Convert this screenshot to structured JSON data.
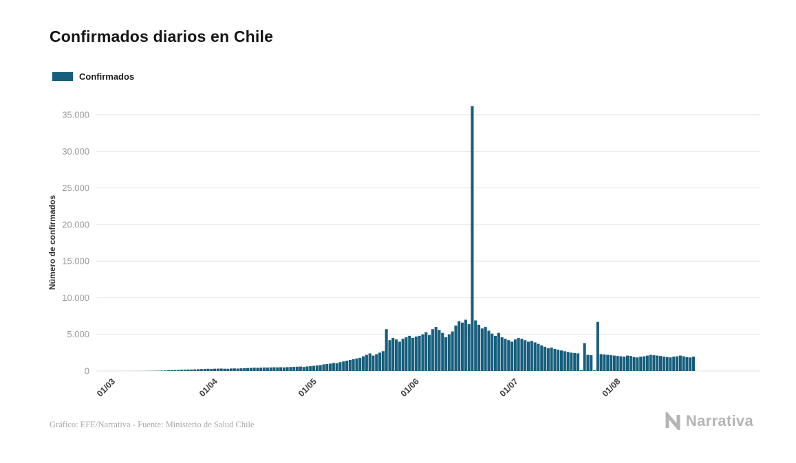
{
  "page": {
    "title": "Confirmados diarios en Chile",
    "legend": {
      "label": "Confirmados"
    },
    "footer": {
      "credit": "Gráfico: EFE/Narrativa - Fuente: Ministerio de Salud Chile",
      "brand": "Narrativa"
    }
  },
  "chart_data": {
    "type": "bar",
    "title": "Confirmados diarios en Chile",
    "xlabel": "",
    "ylabel": "Número de confirmados",
    "legend_entries": [
      "Confirmados"
    ],
    "legend_position": "top-left",
    "grid": true,
    "bar_color": "#175e7c",
    "gridline_color": "#e3e3e3",
    "ylim": [
      0,
      35000
    ],
    "yticks": [
      0,
      5000,
      10000,
      15000,
      20000,
      25000,
      30000,
      35000
    ],
    "ytick_labels": [
      "0",
      "5.000",
      "10.000",
      "15.000",
      "20.000",
      "25.000",
      "30.000",
      "35.000"
    ],
    "x_granularity": "daily",
    "xticks_day_index": [
      0,
      31,
      61,
      92,
      122,
      153
    ],
    "xtick_labels": [
      "01/03",
      "01/04",
      "01/05",
      "01/06",
      "01/07",
      "01/08"
    ],
    "peak_value": 36179,
    "values": [
      1,
      2,
      3,
      4,
      5,
      6,
      8,
      10,
      12,
      15,
      20,
      25,
      30,
      40,
      55,
      70,
      85,
      100,
      120,
      140,
      160,
      175,
      190,
      200,
      220,
      240,
      260,
      280,
      300,
      290,
      310,
      320,
      330,
      310,
      300,
      340,
      350,
      330,
      360,
      380,
      400,
      420,
      440,
      430,
      450,
      470,
      460,
      480,
      500,
      490,
      510,
      480,
      520,
      540,
      560,
      580,
      600,
      550,
      620,
      650,
      700,
      750,
      800,
      900,
      950,
      1000,
      1100,
      1050,
      1200,
      1300,
      1400,
      1500,
      1600,
      1700,
      1800,
      2000,
      2200,
      2400,
      2100,
      2300,
      2500,
      2700,
      5700,
      4200,
      4500,
      4300,
      4000,
      4400,
      4600,
      4800,
      4500,
      4700,
      4800,
      5000,
      5300,
      4900,
      5700,
      6000,
      5600,
      5200,
      4600,
      5000,
      5400,
      6200,
      6800,
      6600,
      7000,
      6400,
      36179,
      6900,
      6300,
      5800,
      6000,
      5500,
      5100,
      4800,
      5200,
      4600,
      4400,
      4200,
      4000,
      4300,
      4500,
      4400,
      4200,
      4000,
      4100,
      3900,
      3700,
      3500,
      3300,
      3100,
      3200,
      3000,
      2900,
      2800,
      2700,
      2600,
      2500,
      2450,
      2400,
      100,
      3800,
      2200,
      2150,
      80,
      6700,
      2300,
      2250,
      2200,
      2150,
      2100,
      2050,
      2000,
      1950,
      2100,
      2050,
      1900,
      1850,
      1950,
      2000,
      2100,
      2200,
      2150,
      2100,
      2050,
      1950,
      1900,
      1850,
      1950,
      2000,
      2100,
      2000,
      1900,
      1850,
      1950
    ]
  }
}
